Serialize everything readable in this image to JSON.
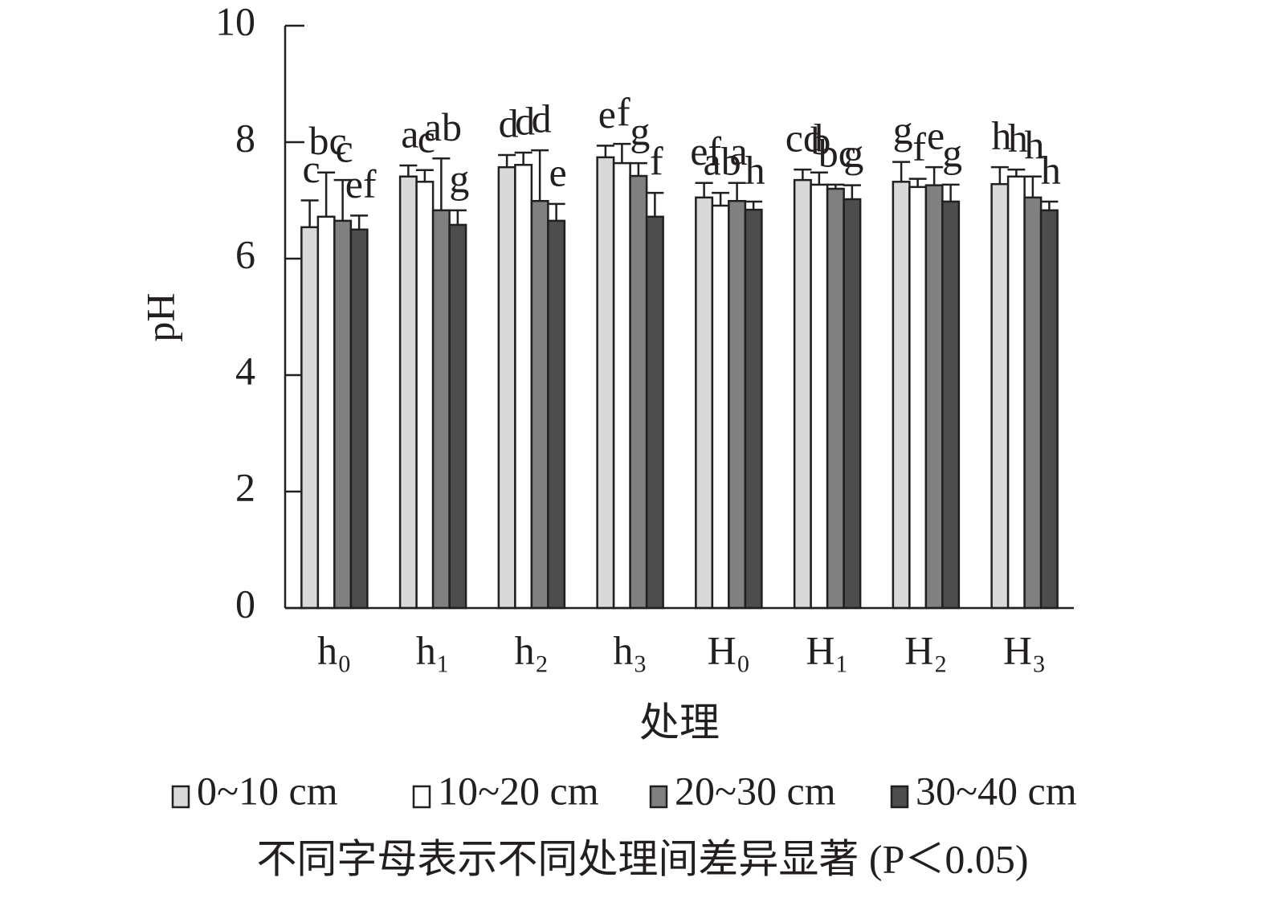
{
  "chart_data": {
    "type": "bar",
    "y_label": "pH",
    "x_label": "处理",
    "note": "不同字母表示不同处理间差异显著 (P＜0.05)",
    "categories": [
      "h₀",
      "h₁",
      "h₂",
      "h₃",
      "H₀",
      "H₁",
      "H₂",
      "H₃"
    ],
    "series": [
      {
        "name": "0~10 cm",
        "color": "#d9d9d9",
        "values": [
          6.54,
          7.41,
          7.57,
          7.74,
          7.05,
          7.35,
          7.32,
          7.28
        ],
        "errors": [
          0.46,
          0.19,
          0.21,
          0.2,
          0.25,
          0.18,
          0.34,
          0.29
        ],
        "letters": [
          "c",
          "a",
          "d",
          "e",
          "ef",
          "cd",
          "g",
          "h"
        ]
      },
      {
        "name": "10~20 cm",
        "color": "#ffffff",
        "values": [
          6.72,
          7.32,
          7.61,
          7.64,
          6.91,
          7.27,
          7.23,
          7.41
        ],
        "errors": [
          0.76,
          0.2,
          0.21,
          0.33,
          0.22,
          0.21,
          0.14,
          0.12
        ],
        "letters": [
          "bc",
          "c",
          "d",
          "f",
          "ab",
          "b",
          "f",
          "h"
        ]
      },
      {
        "name": "20~30 cm",
        "color": "#808080",
        "values": [
          6.65,
          6.83,
          6.99,
          7.42,
          6.99,
          7.2,
          7.26,
          7.05
        ],
        "errors": [
          0.7,
          0.89,
          0.87,
          0.22,
          0.31,
          0.07,
          0.31,
          0.36
        ],
        "letters": [
          "c",
          "ab",
          "d",
          "g",
          "a",
          "bc",
          "e",
          "h"
        ]
      },
      {
        "name": "30~40 cm",
        "color": "#4d4d4d",
        "values": [
          6.5,
          6.58,
          6.65,
          6.72,
          6.84,
          7.02,
          6.98,
          6.83
        ],
        "errors": [
          0.24,
          0.25,
          0.29,
          0.41,
          0.14,
          0.24,
          0.29,
          0.15
        ],
        "letters": [
          "ef",
          "g",
          "e",
          "f",
          "h",
          "g",
          "g",
          "h"
        ]
      }
    ],
    "ylim": [
      0,
      10
    ],
    "yticks": [
      0,
      2,
      4,
      6,
      8,
      10
    ]
  }
}
